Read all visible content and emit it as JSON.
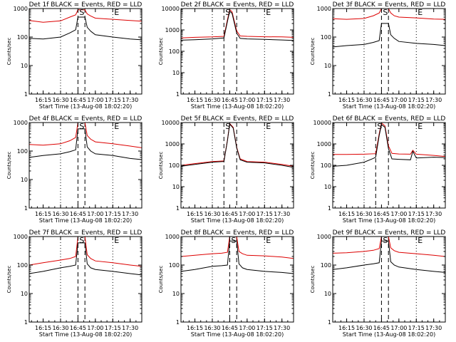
{
  "page": {
    "background": "#ffffff",
    "colors": {
      "events": "#000000",
      "lld": "#dd0000",
      "axis": "#000000"
    }
  },
  "common": {
    "xtick_labels": [
      "16:15",
      "16:30",
      "16:45",
      "17:00",
      "17:15",
      "17:30"
    ],
    "xlabel": "Start Time (13-Aug-08 18:02:20)",
    "ylabel": "Counts/sec",
    "ytick_labels": [
      "1",
      "10",
      "100",
      "1000",
      "10000"
    ],
    "marker_labels": {
      "start": "S",
      "end": "E"
    }
  },
  "chart_data": [
    {
      "id": "1f",
      "type": "line",
      "title": "Det 1f  BLACK = Events, RED = LLD",
      "x_range": [
        "16:03",
        "17:40"
      ],
      "yscale": "log",
      "ylim": [
        1,
        1000
      ],
      "ytick_labels": [
        "1",
        "10",
        "100",
        "1000"
      ],
      "lines_dotted": [
        "16:30",
        "17:15"
      ],
      "lines_dashed": [
        "16:45",
        "16:51"
      ],
      "series": [
        {
          "name": "LLD",
          "color": "#dd0000",
          "x": [
            "16:03",
            "16:15",
            "16:30",
            "16:38",
            "16:43",
            "16:45",
            "16:51",
            "16:53",
            "16:56",
            "17:00",
            "17:15",
            "17:30",
            "17:40"
          ],
          "y": [
            380,
            330,
            370,
            500,
            600,
            900,
            900,
            650,
            550,
            460,
            420,
            380,
            360
          ]
        },
        {
          "name": "Events",
          "color": "#000000",
          "x": [
            "16:03",
            "16:15",
            "16:30",
            "16:38",
            "16:43",
            "16:45",
            "16:51",
            "16:53",
            "16:56",
            "17:00",
            "17:15",
            "17:30",
            "17:40"
          ],
          "y": [
            90,
            85,
            100,
            140,
            180,
            500,
            500,
            220,
            160,
            120,
            100,
            85,
            80
          ]
        }
      ]
    },
    {
      "id": "2f",
      "type": "line",
      "title": "Det 2f  BLACK = Events, RED = LLD",
      "x_range": [
        "16:03",
        "17:40"
      ],
      "yscale": "log",
      "ylim": [
        1,
        10000
      ],
      "ytick_labels": [
        "1",
        "10",
        "100",
        "1000",
        "10000"
      ],
      "lines_dotted": [
        "16:30",
        "17:15"
      ],
      "lines_dashed": [
        "16:40",
        "16:51"
      ],
      "series": [
        {
          "name": "LLD",
          "color": "#dd0000",
          "x": [
            "16:03",
            "16:15",
            "16:30",
            "16:40",
            "16:43",
            "16:45",
            "16:47",
            "16:51",
            "16:54",
            "17:00",
            "17:15",
            "17:30",
            "17:40"
          ],
          "y": [
            420,
            450,
            470,
            500,
            3000,
            9000,
            7000,
            900,
            520,
            500,
            480,
            470,
            450
          ]
        },
        {
          "name": "Events",
          "color": "#000000",
          "x": [
            "16:03",
            "16:15",
            "16:30",
            "16:40",
            "16:43",
            "16:45",
            "16:47",
            "16:51",
            "16:54",
            "17:00",
            "17:15",
            "17:30",
            "17:40"
          ],
          "y": [
            330,
            350,
            380,
            420,
            2500,
            7500,
            6000,
            700,
            400,
            380,
            360,
            340,
            320
          ]
        }
      ]
    },
    {
      "id": "3f",
      "type": "line",
      "title": "Det 3f  BLACK = Events, RED = LLD",
      "x_range": [
        "16:03",
        "17:40"
      ],
      "yscale": "log",
      "ylim": [
        1,
        1000
      ],
      "ytick_labels": [
        "1",
        "10",
        "100",
        "1000"
      ],
      "lines_dotted": [
        "16:30",
        "17:15"
      ],
      "lines_dashed": [
        "16:45",
        "16:51"
      ],
      "series": [
        {
          "name": "LLD",
          "color": "#dd0000",
          "x": [
            "16:03",
            "16:15",
            "16:30",
            "16:38",
            "16:43",
            "16:45",
            "16:51",
            "16:53",
            "16:56",
            "17:00",
            "17:15",
            "17:30",
            "17:40"
          ],
          "y": [
            440,
            420,
            450,
            560,
            700,
            1000,
            1000,
            700,
            560,
            500,
            470,
            430,
            420
          ]
        },
        {
          "name": "Events",
          "color": "#000000",
          "x": [
            "16:03",
            "16:15",
            "16:30",
            "16:38",
            "16:43",
            "16:45",
            "16:51",
            "16:53",
            "16:56",
            "17:00",
            "17:15",
            "17:30",
            "17:40"
          ],
          "y": [
            45,
            50,
            55,
            65,
            75,
            300,
            300,
            120,
            90,
            70,
            60,
            55,
            50
          ]
        }
      ]
    },
    {
      "id": "4f",
      "type": "line",
      "title": "Det 4f  BLACK = Events, RED = LLD",
      "x_range": [
        "16:03",
        "17:40"
      ],
      "yscale": "log",
      "ylim": [
        1,
        1000
      ],
      "ytick_labels": [
        "1",
        "10",
        "100",
        "1000"
      ],
      "lines_dotted": [
        "16:30",
        "17:15"
      ],
      "lines_dashed": [
        "16:45",
        "16:51"
      ],
      "series": [
        {
          "name": "LLD",
          "color": "#dd0000",
          "x": [
            "16:03",
            "16:15",
            "16:30",
            "16:38",
            "16:43",
            "16:45",
            "16:51",
            "16:53",
            "16:56",
            "17:00",
            "17:15",
            "17:30",
            "17:40"
          ],
          "y": [
            170,
            160,
            180,
            230,
            300,
            1000,
            1000,
            350,
            260,
            210,
            180,
            150,
            130
          ]
        },
        {
          "name": "Events",
          "color": "#000000",
          "x": [
            "16:03",
            "16:15",
            "16:30",
            "16:38",
            "16:43",
            "16:45",
            "16:51",
            "16:53",
            "16:56",
            "17:00",
            "17:15",
            "17:30",
            "17:40"
          ],
          "y": [
            60,
            70,
            80,
            95,
            110,
            600,
            600,
            140,
            100,
            80,
            70,
            55,
            50
          ]
        }
      ]
    },
    {
      "id": "5f",
      "type": "line",
      "title": "Det 5f  BLACK = Events, RED = LLD",
      "x_range": [
        "16:03",
        "17:40"
      ],
      "yscale": "log",
      "ylim": [
        1,
        10000
      ],
      "ytick_labels": [
        "1",
        "10",
        "100",
        "1000",
        "10000"
      ],
      "lines_dotted": [
        "16:30",
        "17:15"
      ],
      "lines_dashed": [
        "16:40",
        "16:51"
      ],
      "series": [
        {
          "name": "LLD",
          "color": "#dd0000",
          "x": [
            "16:03",
            "16:15",
            "16:30",
            "16:40",
            "16:43",
            "16:45",
            "16:48",
            "16:51",
            "16:54",
            "17:00",
            "17:15",
            "17:30",
            "17:40"
          ],
          "y": [
            100,
            120,
            150,
            160,
            1500,
            9000,
            6000,
            700,
            200,
            150,
            140,
            110,
            90
          ]
        },
        {
          "name": "Events",
          "color": "#000000",
          "x": [
            "16:03",
            "16:15",
            "16:30",
            "16:40",
            "16:43",
            "16:45",
            "16:48",
            "16:51",
            "16:54",
            "17:00",
            "17:15",
            "17:30",
            "17:40"
          ],
          "y": [
            90,
            110,
            140,
            150,
            1400,
            8500,
            5500,
            650,
            180,
            140,
            130,
            100,
            80
          ]
        }
      ]
    },
    {
      "id": "6f",
      "type": "line",
      "title": "Det 6f  BLACK = Events, RED = LLD",
      "x_range": [
        "16:03",
        "17:40"
      ],
      "yscale": "log",
      "ylim": [
        1,
        10000
      ],
      "ytick_labels": [
        "1",
        "10",
        "100",
        "1000",
        "10000"
      ],
      "lines_dotted": [
        "16:30",
        "17:15"
      ],
      "lines_dashed": [
        "16:40",
        "16:51"
      ],
      "series": [
        {
          "name": "LLD",
          "color": "#dd0000",
          "x": [
            "16:03",
            "16:15",
            "16:30",
            "16:40",
            "16:43",
            "16:45",
            "16:48",
            "16:51",
            "16:54",
            "17:00",
            "17:10",
            "17:12",
            "17:15",
            "17:30",
            "17:40"
          ],
          "y": [
            320,
            320,
            330,
            350,
            3000,
            9500,
            7000,
            800,
            360,
            340,
            330,
            500,
            330,
            290,
            260
          ]
        },
        {
          "name": "Events",
          "color": "#000000",
          "x": [
            "16:03",
            "16:15",
            "16:30",
            "16:38",
            "16:40",
            "16:43",
            "16:45",
            "16:48",
            "16:51",
            "16:54",
            "17:00",
            "17:10",
            "17:12",
            "17:15",
            "17:30",
            "17:40"
          ],
          "y": [
            90,
            100,
            140,
            210,
            240,
            2500,
            8000,
            6000,
            600,
            200,
            190,
            180,
            450,
            220,
            240,
            230
          ]
        }
      ]
    },
    {
      "id": "7f",
      "type": "line",
      "title": "Det 7f  BLACK = Events, RED = LLD",
      "x_range": [
        "16:03",
        "17:40"
      ],
      "yscale": "log",
      "ylim": [
        1,
        1000
      ],
      "ytick_labels": [
        "1",
        "10",
        "100",
        "1000"
      ],
      "lines_dotted": [
        "16:30",
        "17:15"
      ],
      "lines_dashed": [
        "16:45",
        "16:51"
      ],
      "series": [
        {
          "name": "LLD",
          "color": "#dd0000",
          "x": [
            "16:03",
            "16:15",
            "16:30",
            "16:38",
            "16:43",
            "16:45",
            "16:51",
            "16:53",
            "16:56",
            "17:00",
            "17:15",
            "17:30",
            "17:40"
          ],
          "y": [
            100,
            120,
            150,
            170,
            200,
            1000,
            1000,
            230,
            170,
            140,
            120,
            100,
            90
          ]
        },
        {
          "name": "Events",
          "color": "#000000",
          "x": [
            "16:03",
            "16:15",
            "16:30",
            "16:38",
            "16:43",
            "16:45",
            "16:51",
            "16:53",
            "16:56",
            "17:00",
            "17:15",
            "17:30",
            "17:40"
          ],
          "y": [
            50,
            60,
            80,
            90,
            100,
            600,
            600,
            110,
            80,
            70,
            60,
            50,
            45
          ]
        }
      ]
    },
    {
      "id": "8f",
      "type": "line",
      "title": "Det 8f  BLACK = Events, RED = LLD",
      "x_range": [
        "16:03",
        "17:40"
      ],
      "yscale": "log",
      "ylim": [
        1,
        1000
      ],
      "ytick_labels": [
        "1",
        "10",
        "100",
        "1000"
      ],
      "lines_dotted": [
        "16:30",
        "17:15"
      ],
      "lines_dashed": [
        "16:45",
        "16:51"
      ],
      "series": [
        {
          "name": "LLD",
          "color": "#dd0000",
          "x": [
            "16:03",
            "16:15",
            "16:30",
            "16:38",
            "16:43",
            "16:45",
            "16:51",
            "16:53",
            "16:56",
            "17:00",
            "17:15",
            "17:30",
            "17:40"
          ],
          "y": [
            200,
            220,
            250,
            260,
            280,
            1000,
            1000,
            300,
            250,
            220,
            210,
            190,
            170
          ]
        },
        {
          "name": "Events",
          "color": "#000000",
          "x": [
            "16:03",
            "16:15",
            "16:30",
            "16:38",
            "16:43",
            "16:45",
            "16:51",
            "16:53",
            "16:56",
            "17:00",
            "17:15",
            "17:30",
            "17:40"
          ],
          "y": [
            60,
            70,
            90,
            95,
            100,
            700,
            700,
            110,
            80,
            70,
            60,
            55,
            50
          ]
        }
      ]
    },
    {
      "id": "9f",
      "type": "line",
      "title": "Det 9f  BLACK = Events, RED = LLD",
      "x_range": [
        "16:03",
        "17:40"
      ],
      "yscale": "log",
      "ylim": [
        1,
        1000
      ],
      "ytick_labels": [
        "1",
        "10",
        "100",
        "1000"
      ],
      "lines_dotted": [
        "16:30",
        "17:15"
      ],
      "lines_dashed": [
        "16:45",
        "16:51"
      ],
      "series": [
        {
          "name": "LLD",
          "color": "#dd0000",
          "x": [
            "16:03",
            "16:15",
            "16:30",
            "16:38",
            "16:43",
            "16:45",
            "16:51",
            "16:53",
            "16:56",
            "17:00",
            "17:15",
            "17:30",
            "17:40"
          ],
          "y": [
            260,
            270,
            300,
            330,
            380,
            1000,
            1000,
            400,
            320,
            280,
            250,
            220,
            200
          ]
        },
        {
          "name": "Events",
          "color": "#000000",
          "x": [
            "16:03",
            "16:15",
            "16:30",
            "16:38",
            "16:43",
            "16:45",
            "16:51",
            "16:53",
            "16:56",
            "17:00",
            "17:15",
            "17:30",
            "17:40"
          ],
          "y": [
            70,
            80,
            100,
            110,
            120,
            700,
            700,
            130,
            100,
            85,
            70,
            60,
            55
          ]
        }
      ]
    }
  ]
}
